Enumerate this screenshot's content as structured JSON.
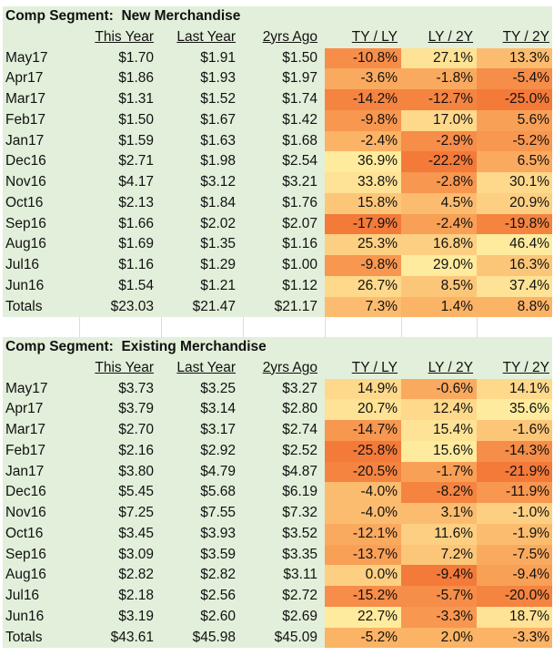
{
  "columns": [
    "This Year",
    "Last Year",
    "2yrs Ago",
    "TY / LY",
    "LY / 2Y",
    "TY / 2Y"
  ],
  "scale_colors": {
    "low": "#f47a3a",
    "mid": "#fbb366",
    "high": "#ffeb9e"
  },
  "sections": [
    {
      "title": "Comp Segment:  New Merchandise",
      "rows": [
        {
          "label": "May17",
          "ty": "$1.70",
          "ly": "$1.91",
          "y2": "$1.50",
          "tyly": "-10.8%",
          "ly2y": "27.1%",
          "ty2y": "13.3%"
        },
        {
          "label": "Apr17",
          "ty": "$1.86",
          "ly": "$1.93",
          "y2": "$1.97",
          "tyly": "-3.6%",
          "ly2y": "-1.8%",
          "ty2y": "-5.4%"
        },
        {
          "label": "Mar17",
          "ty": "$1.31",
          "ly": "$1.52",
          "y2": "$1.74",
          "tyly": "-14.2%",
          "ly2y": "-12.7%",
          "ty2y": "-25.0%"
        },
        {
          "label": "Feb17",
          "ty": "$1.50",
          "ly": "$1.67",
          "y2": "$1.42",
          "tyly": "-9.8%",
          "ly2y": "17.0%",
          "ty2y": "5.6%"
        },
        {
          "label": "Jan17",
          "ty": "$1.59",
          "ly": "$1.63",
          "y2": "$1.68",
          "tyly": "-2.4%",
          "ly2y": "-2.9%",
          "ty2y": "-5.2%"
        },
        {
          "label": "Dec16",
          "ty": "$2.71",
          "ly": "$1.98",
          "y2": "$2.54",
          "tyly": "36.9%",
          "ly2y": "-22.2%",
          "ty2y": "6.5%"
        },
        {
          "label": "Nov16",
          "ty": "$4.17",
          "ly": "$3.12",
          "y2": "$3.21",
          "tyly": "33.8%",
          "ly2y": "-2.8%",
          "ty2y": "30.1%"
        },
        {
          "label": "Oct16",
          "ty": "$2.13",
          "ly": "$1.84",
          "y2": "$1.76",
          "tyly": "15.8%",
          "ly2y": "4.5%",
          "ty2y": "20.9%"
        },
        {
          "label": "Sep16",
          "ty": "$1.66",
          "ly": "$2.02",
          "y2": "$2.07",
          "tyly": "-17.9%",
          "ly2y": "-2.4%",
          "ty2y": "-19.8%"
        },
        {
          "label": "Aug16",
          "ty": "$1.69",
          "ly": "$1.35",
          "y2": "$1.16",
          "tyly": "25.3%",
          "ly2y": "16.8%",
          "ty2y": "46.4%"
        },
        {
          "label": "Jul16",
          "ty": "$1.16",
          "ly": "$1.29",
          "y2": "$1.00",
          "tyly": "-9.8%",
          "ly2y": "29.0%",
          "ty2y": "16.3%"
        },
        {
          "label": "Jun16",
          "ty": "$1.54",
          "ly": "$1.21",
          "y2": "$1.12",
          "tyly": "26.7%",
          "ly2y": "8.5%",
          "ty2y": "37.4%"
        },
        {
          "label": "Totals",
          "ty": "$23.03",
          "ly": "$21.47",
          "y2": "$21.17",
          "tyly": "7.3%",
          "ly2y": "1.4%",
          "ty2y": "8.8%"
        }
      ]
    },
    {
      "title": "Comp Segment:  Existing Merchandise",
      "rows": [
        {
          "label": "May17",
          "ty": "$3.73",
          "ly": "$3.25",
          "y2": "$3.27",
          "tyly": "14.9%",
          "ly2y": "-0.6%",
          "ty2y": "14.1%"
        },
        {
          "label": "Apr17",
          "ty": "$3.79",
          "ly": "$3.14",
          "y2": "$2.80",
          "tyly": "20.7%",
          "ly2y": "12.4%",
          "ty2y": "35.6%"
        },
        {
          "label": "Mar17",
          "ty": "$2.70",
          "ly": "$3.17",
          "y2": "$2.74",
          "tyly": "-14.7%",
          "ly2y": "15.4%",
          "ty2y": "-1.6%"
        },
        {
          "label": "Feb17",
          "ty": "$2.16",
          "ly": "$2.92",
          "y2": "$2.52",
          "tyly": "-25.8%",
          "ly2y": "15.6%",
          "ty2y": "-14.3%"
        },
        {
          "label": "Jan17",
          "ty": "$3.80",
          "ly": "$4.79",
          "y2": "$4.87",
          "tyly": "-20.5%",
          "ly2y": "-1.7%",
          "ty2y": "-21.9%"
        },
        {
          "label": "Dec16",
          "ty": "$5.45",
          "ly": "$5.68",
          "y2": "$6.19",
          "tyly": "-4.0%",
          "ly2y": "-8.2%",
          "ty2y": "-11.9%"
        },
        {
          "label": "Nov16",
          "ty": "$7.25",
          "ly": "$7.55",
          "y2": "$7.32",
          "tyly": "-4.0%",
          "ly2y": "3.1%",
          "ty2y": "-1.0%"
        },
        {
          "label": "Oct16",
          "ty": "$3.45",
          "ly": "$3.93",
          "y2": "$3.52",
          "tyly": "-12.1%",
          "ly2y": "11.6%",
          "ty2y": "-1.9%"
        },
        {
          "label": "Sep16",
          "ty": "$3.09",
          "ly": "$3.59",
          "y2": "$3.35",
          "tyly": "-13.7%",
          "ly2y": "7.2%",
          "ty2y": "-7.5%"
        },
        {
          "label": "Aug16",
          "ty": "$2.82",
          "ly": "$2.82",
          "y2": "$3.11",
          "tyly": "0.0%",
          "ly2y": "-9.4%",
          "ty2y": "-9.4%"
        },
        {
          "label": "Jul16",
          "ty": "$2.18",
          "ly": "$2.56",
          "y2": "$2.72",
          "tyly": "-15.2%",
          "ly2y": "-5.7%",
          "ty2y": "-20.0%"
        },
        {
          "label": "Jun16",
          "ty": "$3.19",
          "ly": "$2.60",
          "y2": "$2.69",
          "tyly": "22.7%",
          "ly2y": "-3.3%",
          "ty2y": "18.7%"
        },
        {
          "label": "Totals",
          "ty": "$43.61",
          "ly": "$45.98",
          "y2": "$45.09",
          "tyly": "-5.2%",
          "ly2y": "2.0%",
          "ty2y": "-3.3%"
        }
      ]
    }
  ]
}
